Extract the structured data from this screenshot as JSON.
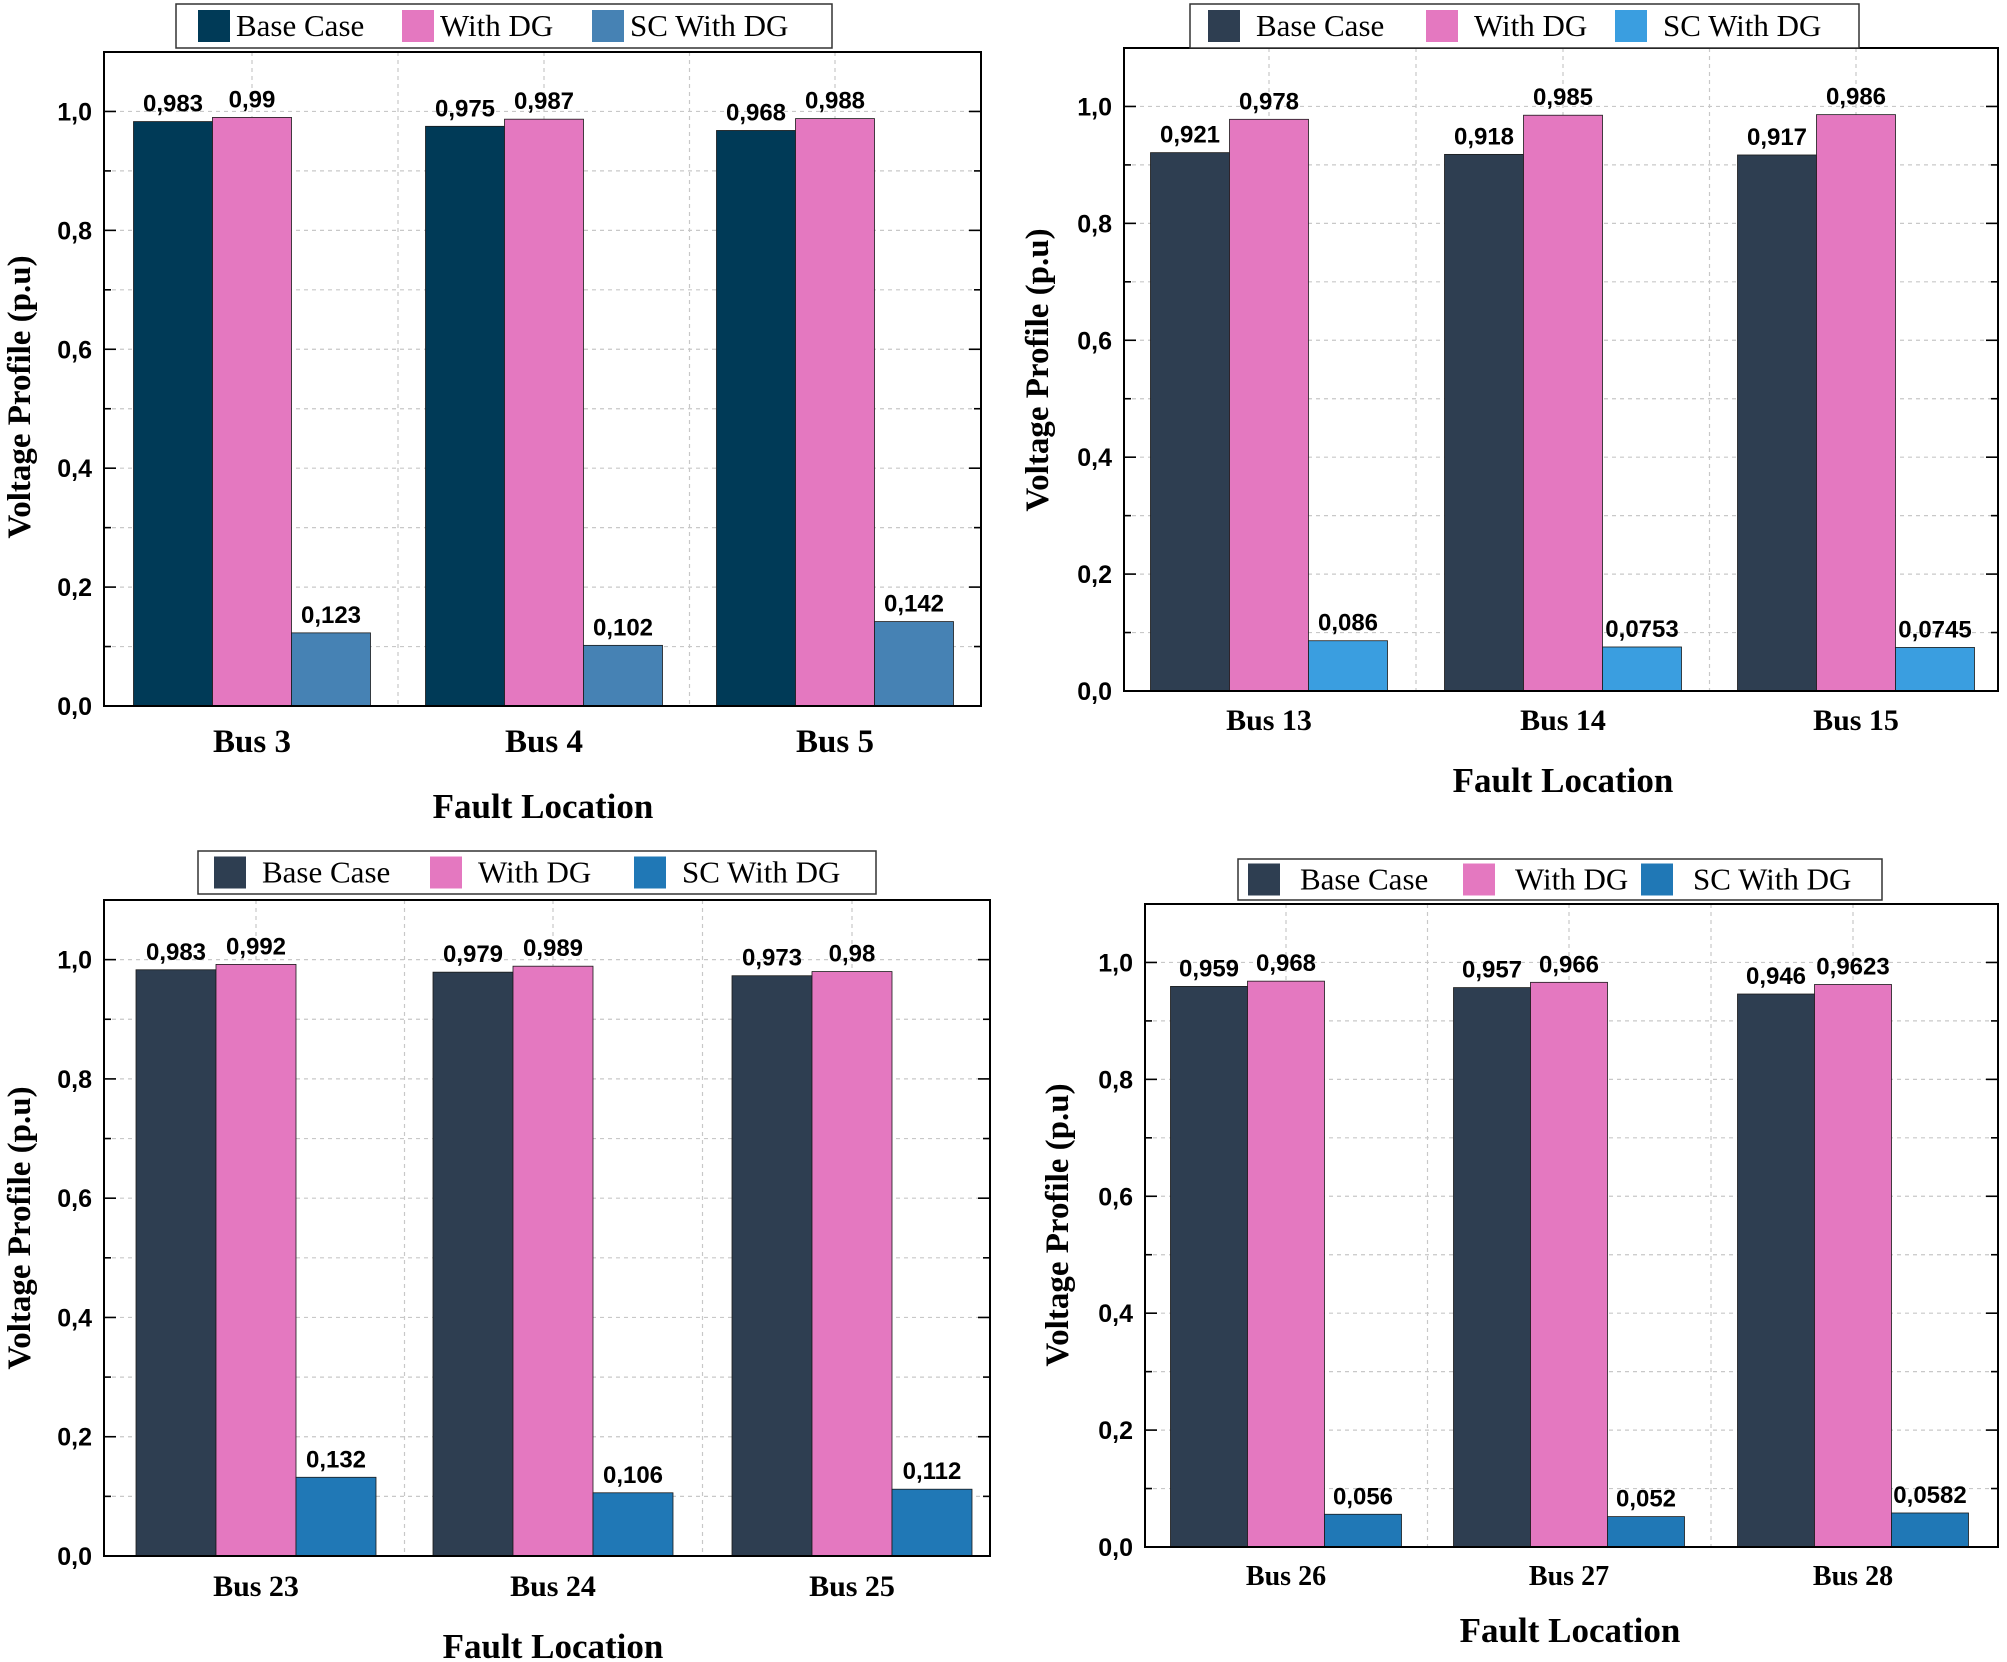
{
  "chart_data": [
    {
      "type": "bar",
      "title": "",
      "categories": [
        "Bus 3",
        "Bus 4",
        "Bus 5"
      ],
      "series": [
        {
          "name": "Base Case",
          "values": [
            0.983,
            0.975,
            0.968
          ],
          "labels": [
            "0,983",
            "0,975",
            "0,968"
          ],
          "color": "#003a57"
        },
        {
          "name": "With DG",
          "values": [
            0.99,
            0.987,
            0.988
          ],
          "labels": [
            "0,99",
            "0,987",
            "0,988"
          ],
          "color": "#e478c0"
        },
        {
          "name": "SC With DG",
          "values": [
            0.123,
            0.102,
            0.142
          ],
          "labels": [
            "0,123",
            "0,102",
            "0,142"
          ],
          "color": "#4682b4"
        }
      ],
      "xlabel": "Fault Location",
      "ylabel": "Voltage Profile (p.u)",
      "ylim": [
        0,
        1.1
      ],
      "yticks": [
        0.0,
        0.2,
        0.4,
        0.6,
        0.8,
        1.0
      ],
      "ytick_labels": [
        "0,0",
        "0,2",
        "0,4",
        "0,6",
        "0,8",
        "1,0"
      ],
      "legend": "top-center",
      "grid": true
    },
    {
      "type": "bar",
      "title": "",
      "categories": [
        "Bus 13",
        "Bus 14",
        "Bus 15"
      ],
      "series": [
        {
          "name": "Base Case",
          "values": [
            0.921,
            0.918,
            0.917
          ],
          "labels": [
            "0,921",
            "0,918",
            "0,917"
          ],
          "color": "#2e3e51"
        },
        {
          "name": "With DG",
          "values": [
            0.978,
            0.985,
            0.986
          ],
          "labels": [
            "0,978",
            "0,985",
            "0,986"
          ],
          "color": "#e478c0"
        },
        {
          "name": "SC With DG",
          "values": [
            0.086,
            0.0753,
            0.0745
          ],
          "labels": [
            "0,086",
            "0,0753",
            "0,0745"
          ],
          "color": "#3a9ee0"
        }
      ],
      "xlabel": "Fault Location",
      "ylabel": "Voltage Profile (p.u)",
      "ylim": [
        0,
        1.1
      ],
      "yticks": [
        0.0,
        0.2,
        0.4,
        0.6,
        0.8,
        1.0
      ],
      "ytick_labels": [
        "0,0",
        "0,2",
        "0,4",
        "0,6",
        "0,8",
        "1,0"
      ],
      "legend": "top-center",
      "grid": true
    },
    {
      "type": "bar",
      "title": "",
      "categories": [
        "Bus 23",
        "Bus 24",
        "Bus 25"
      ],
      "series": [
        {
          "name": "Base Case",
          "values": [
            0.983,
            0.979,
            0.973
          ],
          "labels": [
            "0,983",
            "0,979",
            "0,973"
          ],
          "color": "#2e3e51"
        },
        {
          "name": "With DG",
          "values": [
            0.992,
            0.989,
            0.98
          ],
          "labels": [
            "0,992",
            "0,989",
            "0,98"
          ],
          "color": "#e478c0"
        },
        {
          "name": "SC With DG",
          "values": [
            0.132,
            0.106,
            0.112
          ],
          "labels": [
            "0,132",
            "0,106",
            "0,112"
          ],
          "color": "#2078b6"
        }
      ],
      "xlabel": "Fault Location",
      "ylabel": "Voltage Profile (p.u)",
      "ylim": [
        0,
        1.1
      ],
      "yticks": [
        0.0,
        0.2,
        0.4,
        0.6,
        0.8,
        1.0
      ],
      "ytick_labels": [
        "0,0",
        "0,2",
        "0,4",
        "0,6",
        "0,8",
        "1,0"
      ],
      "legend": "top-center",
      "grid": true
    },
    {
      "type": "bar",
      "title": "",
      "categories": [
        "Bus 26",
        "Bus 27",
        "Bus 28"
      ],
      "series": [
        {
          "name": "Base Case",
          "values": [
            0.959,
            0.957,
            0.946
          ],
          "labels": [
            "0,959",
            "0,957",
            "0,946"
          ],
          "color": "#2e3e51"
        },
        {
          "name": "With DG",
          "values": [
            0.968,
            0.966,
            0.9623
          ],
          "labels": [
            "0,968",
            "0,966",
            "0,9623"
          ],
          "color": "#e478c0"
        },
        {
          "name": "SC With DG",
          "values": [
            0.056,
            0.052,
            0.0582
          ],
          "labels": [
            "0,056",
            "0,052",
            "0,0582"
          ],
          "color": "#2078b6"
        }
      ],
      "xlabel": "Fault Location",
      "ylabel": "Voltage Profile (p.u)",
      "ylim": [
        0,
        1.1
      ],
      "yticks": [
        0.0,
        0.2,
        0.4,
        0.6,
        0.8,
        1.0
      ],
      "ytick_labels": [
        "0,0",
        "0,2",
        "0,4",
        "0,6",
        "0,8",
        "1,0"
      ],
      "legend": "top-center",
      "grid": true
    }
  ]
}
